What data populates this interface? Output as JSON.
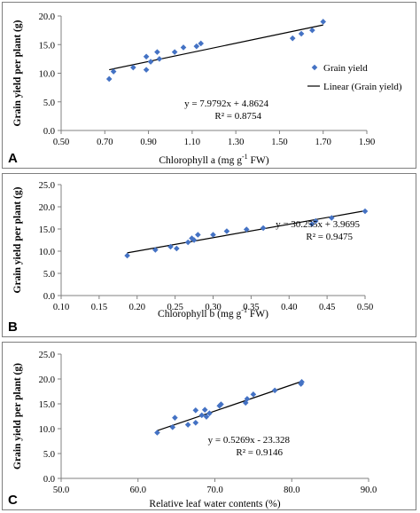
{
  "chart_data": [
    {
      "type": "scatter",
      "panel_label": "A",
      "xlabel": "Chlorophyll  a (mg g",
      "xlabel_sup": "-1",
      "xlabel_tail": "FW)",
      "ylabel": "Grain yield per plant (g)",
      "xlim": [
        0.5,
        1.9
      ],
      "ylim": [
        0,
        20
      ],
      "x_ticks": [
        0.5,
        0.7,
        0.9,
        1.1,
        1.3,
        1.5,
        1.7,
        1.9
      ],
      "x_tick_labels": [
        "0.50",
        "0.70",
        "0.90",
        "1.10",
        "1.30",
        "1.50",
        "1.70",
        "1.90"
      ],
      "y_ticks": [
        0,
        5,
        10,
        15,
        20
      ],
      "y_tick_labels": [
        "0.0",
        "5.0",
        "10.0",
        "15.0",
        "20.0"
      ],
      "series": [
        {
          "name": "Grain yield",
          "color": "#4472c4",
          "points": [
            [
              0.72,
              9.0
            ],
            [
              0.74,
              10.3
            ],
            [
              0.83,
              11.0
            ],
            [
              0.89,
              10.6
            ],
            [
              0.89,
              12.9
            ],
            [
              0.91,
              12.0
            ],
            [
              0.94,
              13.7
            ],
            [
              0.95,
              12.5
            ],
            [
              1.02,
              13.7
            ],
            [
              1.06,
              14.5
            ],
            [
              1.12,
              14.7
            ],
            [
              1.14,
              15.2
            ],
            [
              1.56,
              16.1
            ],
            [
              1.6,
              16.9
            ],
            [
              1.65,
              17.5
            ],
            [
              1.7,
              19.0
            ]
          ]
        }
      ],
      "trendline": {
        "name": "Linear (Grain yield)",
        "slope": 7.9792,
        "intercept": 4.8624,
        "x_range": [
          0.72,
          1.7
        ]
      },
      "legend_position": "right",
      "equation": "y = 7.9792x + 4.8624",
      "r2_label": "R² = 0.8754"
    },
    {
      "type": "scatter",
      "panel_label": "B",
      "xlabel": "Chlorophyll  b (mg g",
      "xlabel_sup": "-1",
      "xlabel_tail": "FW)",
      "ylabel": "Grain yield per plant (g)",
      "xlim": [
        0.1,
        0.5
      ],
      "ylim": [
        0,
        25
      ],
      "x_ticks": [
        0.1,
        0.15,
        0.2,
        0.25,
        0.3,
        0.35,
        0.4,
        0.45,
        0.5
      ],
      "x_tick_labels": [
        "0.10",
        "0.15",
        "0.20",
        "0.25",
        "0.30",
        "0.35",
        "0.40",
        "0.45",
        "0.50"
      ],
      "y_ticks": [
        0,
        5,
        10,
        15,
        20,
        25
      ],
      "y_tick_labels": [
        "0.0",
        "5.0",
        "10.0",
        "15.0",
        "20.0",
        "25.0"
      ],
      "series": [
        {
          "name": "Grain yield",
          "color": "#4472c4",
          "points": [
            [
              0.187,
              9.0
            ],
            [
              0.224,
              10.3
            ],
            [
              0.244,
              11.0
            ],
            [
              0.252,
              10.6
            ],
            [
              0.267,
              12.0
            ],
            [
              0.272,
              12.9
            ],
            [
              0.275,
              12.5
            ],
            [
              0.28,
              13.7
            ],
            [
              0.3,
              13.7
            ],
            [
              0.318,
              14.5
            ],
            [
              0.344,
              14.9
            ],
            [
              0.366,
              15.2
            ],
            [
              0.43,
              16.1
            ],
            [
              0.435,
              16.8
            ],
            [
              0.456,
              17.5
            ],
            [
              0.5,
              19.0
            ]
          ]
        }
      ],
      "trendline": {
        "slope": 30.255,
        "intercept": 3.9695,
        "x_range": [
          0.187,
          0.5
        ]
      },
      "equation": "y = 30.255x + 3.9695",
      "r2_label": "R² = 0.9475"
    },
    {
      "type": "scatter",
      "panel_label": "C",
      "xlabel": "Relative leaf water contents (%)",
      "ylabel": "Grain yield per plant (g)",
      "xlim": [
        50,
        90
      ],
      "ylim": [
        0,
        25
      ],
      "x_ticks": [
        50,
        60,
        70,
        80,
        90
      ],
      "x_tick_labels": [
        "50.0",
        "60.0",
        "70.0",
        "80.0",
        "90.0"
      ],
      "y_ticks": [
        0,
        5,
        10,
        15,
        20,
        25
      ],
      "y_tick_labels": [
        "0.0",
        "5.0",
        "10.0",
        "15.0",
        "20.0",
        "25.0"
      ],
      "series": [
        {
          "name": "Grain yield",
          "color": "#4472c4",
          "points": [
            [
              62.5,
              9.2
            ],
            [
              64.5,
              10.3
            ],
            [
              64.8,
              12.2
            ],
            [
              66.5,
              10.8
            ],
            [
              67.5,
              11.2
            ],
            [
              67.5,
              13.7
            ],
            [
              68.3,
              12.7
            ],
            [
              68.7,
              13.8
            ],
            [
              68.9,
              12.4
            ],
            [
              69.3,
              13.1
            ],
            [
              70.6,
              14.6
            ],
            [
              70.8,
              14.9
            ],
            [
              74.0,
              15.2
            ],
            [
              74.2,
              16.0
            ],
            [
              75.0,
              16.9
            ],
            [
              77.8,
              17.7
            ],
            [
              81.2,
              19.0
            ],
            [
              81.3,
              19.4
            ]
          ]
        }
      ],
      "trendline": {
        "slope": 0.5269,
        "intercept": -23.328,
        "x_range": [
          62.5,
          81.3
        ]
      },
      "equation": "y = 0.5269x - 23.328",
      "r2_label": "R² = 0.9146"
    }
  ]
}
